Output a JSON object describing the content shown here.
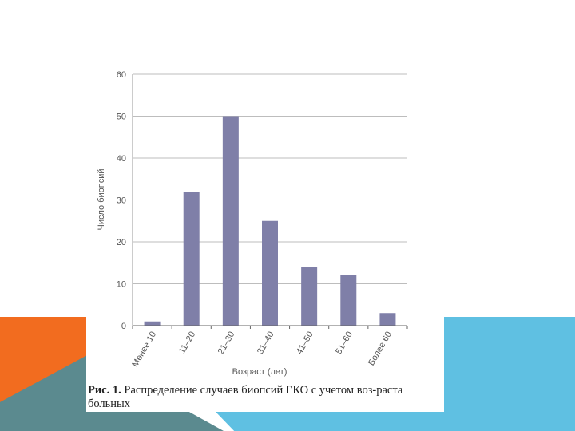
{
  "chart_data": {
    "type": "bar",
    "categories": [
      "Менее 10",
      "11–20",
      "21–30",
      "31–40",
      "41–50",
      "51–60",
      "Более 60"
    ],
    "values": [
      1,
      32,
      50,
      25,
      14,
      12,
      3
    ],
    "xlabel": "Возраст (лет)",
    "ylabel": "Число биопсий",
    "ylim": [
      0,
      60
    ],
    "yticks": [
      0,
      10,
      20,
      30,
      40,
      50,
      60
    ],
    "grid": true,
    "bar_color": "#7f7fa8"
  },
  "caption": {
    "label": "Рис. 1.",
    "text": " Распределение случаев биопсий ГКО с учетом воз-раста больных"
  },
  "colors": {
    "orange": "#f26c1f",
    "teal": "#5b8a8f",
    "blue": "#5fc0e2"
  }
}
